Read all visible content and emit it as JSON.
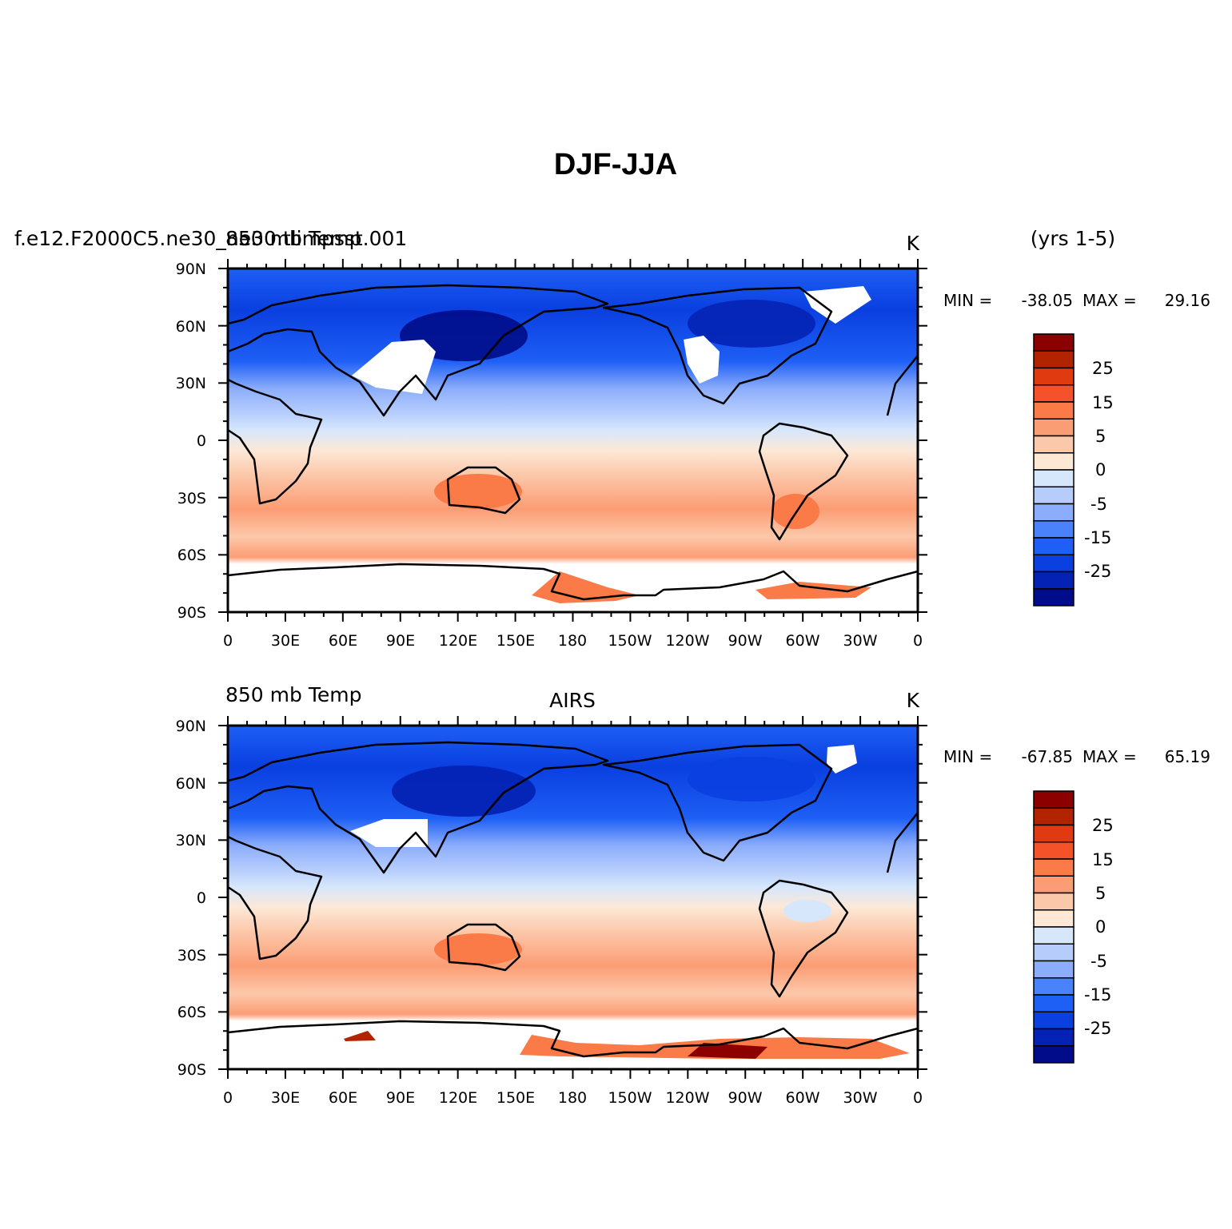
{
  "title": "DJF-JJA",
  "years": "(yrs 1-5)",
  "x_ticks": [
    "0",
    "30E",
    "60E",
    "90E",
    "120E",
    "150E",
    "180",
    "150W",
    "120W",
    "90W",
    "60W",
    "30W",
    "0"
  ],
  "y_ticks": [
    "90N",
    "60N",
    "30N",
    "0",
    "30S",
    "60S",
    "90S"
  ],
  "colorbar": {
    "levels": [
      "25",
      "15",
      "5",
      "0",
      "-5",
      "-15",
      "-25"
    ],
    "colors": [
      "#8c0000",
      "#b22300",
      "#e03a10",
      "#f5522a",
      "#fa7a48",
      "#fb9d74",
      "#fcc8aa",
      "#fde8d6",
      "#d6e7fc",
      "#b6cdfc",
      "#8cadfb",
      "#4a82fb",
      "#1e5ff5",
      "#0a3fe0",
      "#0423b4",
      "#000c8a"
    ]
  },
  "panels": [
    {
      "id": "model",
      "case_label": "f.e12.F2000C5.ne30_ne30.tlimpsst.001",
      "variable_label": "850 mb Temp",
      "units": "K",
      "min_label": "MIN =",
      "min_value": "-38.05",
      "max_label": "MAX =",
      "max_value": "29.16"
    },
    {
      "id": "obs",
      "variable_label": "850 mb Temp",
      "source_label": "AIRS",
      "units": "K",
      "min_label": "MIN =",
      "min_value": "-67.85",
      "max_label": "MAX =",
      "max_value": "65.19"
    }
  ]
}
